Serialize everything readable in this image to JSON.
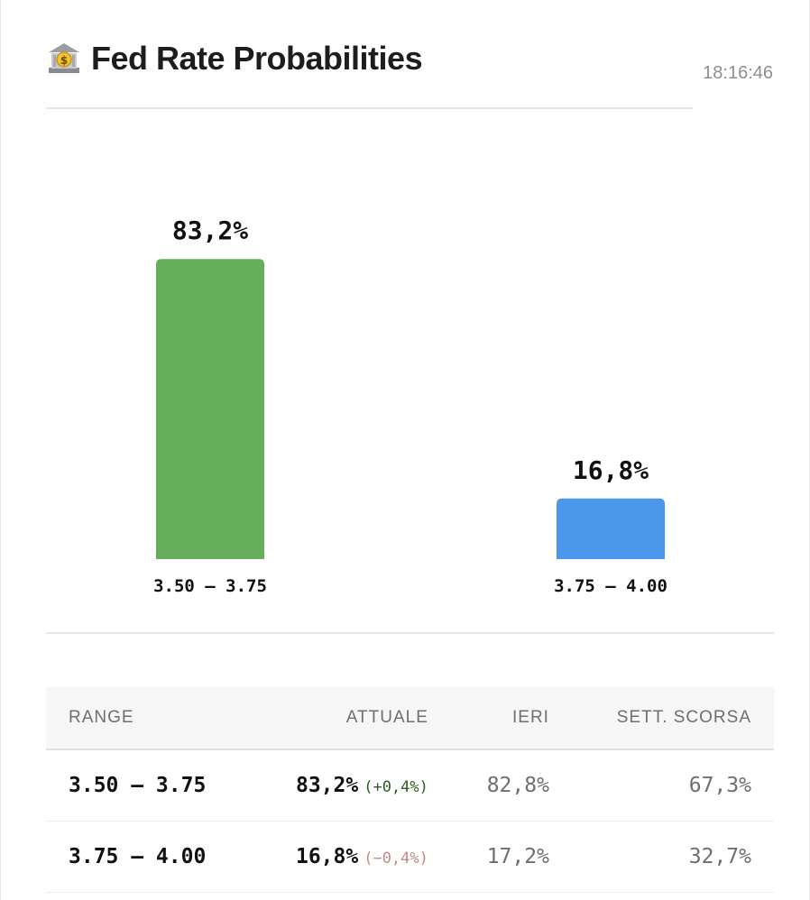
{
  "header": {
    "title": "Fed Rate Probabilities",
    "time": "18:16:46"
  },
  "colors": {
    "bar_1": "#66ad5c",
    "bar_2": "#4a97ec",
    "change_up": "#2e5e1e",
    "change_down": "#c48a8a"
  },
  "chart_data": {
    "type": "bar",
    "categories": [
      "3.50 – 3.75",
      "3.75 – 4.00"
    ],
    "values": [
      83.2,
      16.8
    ],
    "value_labels": [
      "83,2%",
      "16,8%"
    ],
    "ylim": [
      0,
      100
    ],
    "title": "",
    "xlabel": "",
    "ylabel": "",
    "grid": false
  },
  "table": {
    "headers": [
      "RANGE",
      "ATTUALE",
      "IERI",
      "SETT. SCORSA"
    ],
    "rows": [
      {
        "range": "3.50 – 3.75",
        "current": "83,2%",
        "change": "(+0,4%)",
        "direction": "up",
        "yesterday": "82,8%",
        "last_week": "67,3%"
      },
      {
        "range": "3.75 – 4.00",
        "current": "16,8%",
        "change": "(−0,4%)",
        "direction": "down",
        "yesterday": "17,2%",
        "last_week": "32,7%"
      }
    ]
  }
}
